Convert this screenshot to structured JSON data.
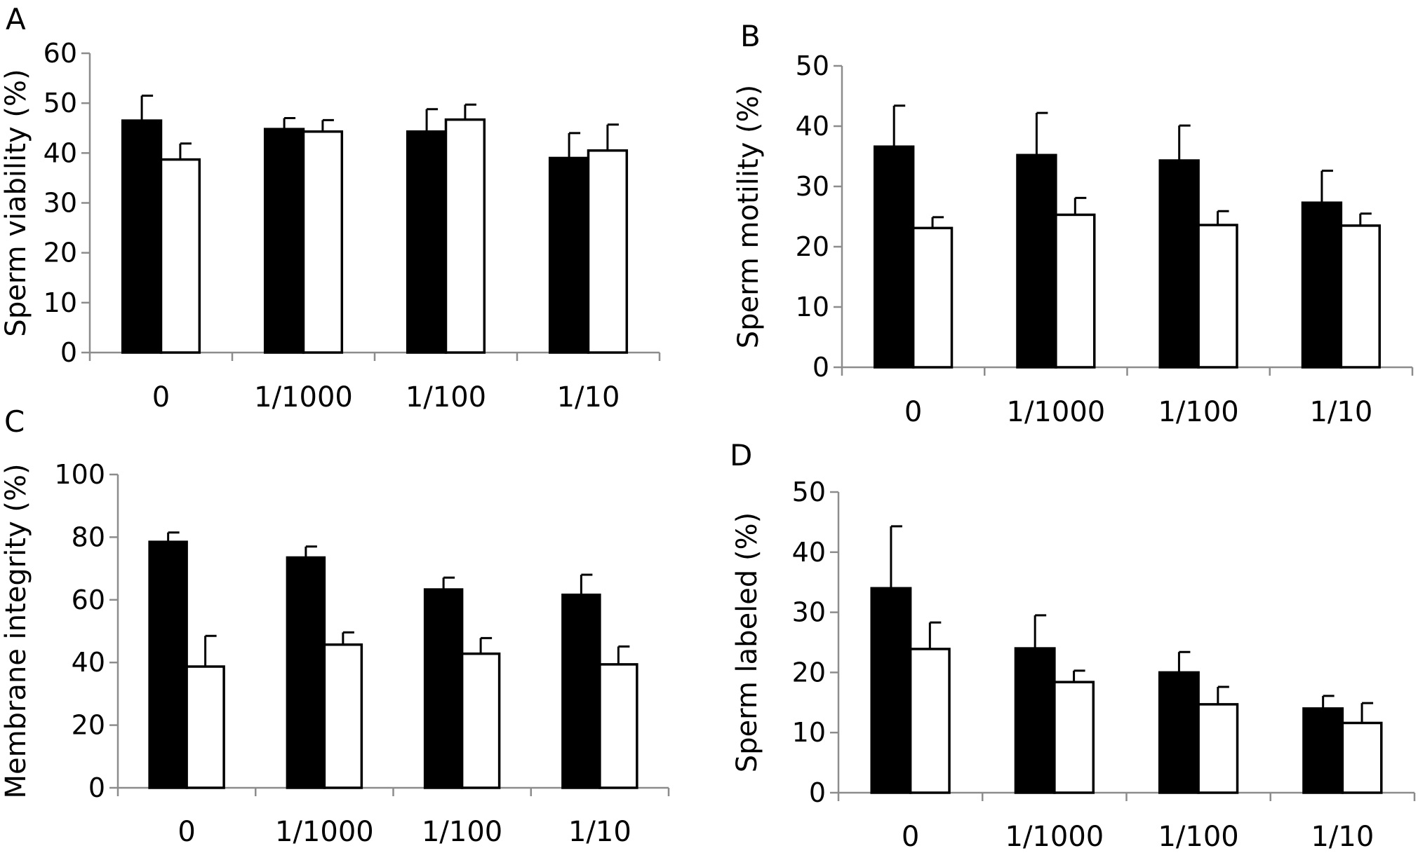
{
  "chart_data": [
    {
      "panel": "A",
      "type": "bar",
      "ylabel": "Sperm viability (%)",
      "xlabel": "",
      "categories": [
        "0",
        "1/1000",
        "1/100",
        "1/10"
      ],
      "ylim": [
        0,
        60
      ],
      "yticks": [
        0,
        10,
        20,
        30,
        40,
        50,
        60
      ],
      "series": [
        {
          "fill": "#000000",
          "values": [
            46.5,
            44.8,
            44.3,
            39.0
          ],
          "error": [
            5.0,
            2.2,
            4.5,
            5.0
          ]
        },
        {
          "fill": "#ffffff",
          "values": [
            38.7,
            44.3,
            46.7,
            40.5
          ],
          "error": [
            3.2,
            2.3,
            3.0,
            5.2
          ]
        }
      ],
      "grid": false,
      "legend": "none"
    },
    {
      "panel": "B",
      "type": "bar",
      "ylabel": "Sperm motility (%)",
      "xlabel": "",
      "categories": [
        "0",
        "1/1000",
        "1/100",
        "1/10"
      ],
      "ylim": [
        0,
        50
      ],
      "yticks": [
        0,
        10,
        20,
        30,
        40,
        50
      ],
      "series": [
        {
          "fill": "#000000",
          "values": [
            36.6,
            35.2,
            34.3,
            27.3
          ],
          "error": [
            6.8,
            7.0,
            5.8,
            5.3
          ]
        },
        {
          "fill": "#ffffff",
          "values": [
            23.1,
            25.3,
            23.6,
            23.5
          ],
          "error": [
            1.8,
            2.8,
            2.3,
            2.0
          ]
        }
      ],
      "grid": false,
      "legend": "none"
    },
    {
      "panel": "C",
      "type": "bar",
      "ylabel": "Membrane  integrity (%)",
      "xlabel": "",
      "categories": [
        "0",
        "1/1000",
        "1/100",
        "1/10"
      ],
      "ylim": [
        0,
        100
      ],
      "yticks": [
        0,
        20,
        40,
        60,
        80,
        100
      ],
      "series": [
        {
          "fill": "#000000",
          "values": [
            78.5,
            73.5,
            63.3,
            61.6
          ],
          "error": [
            3.0,
            3.5,
            3.8,
            6.4
          ]
        },
        {
          "fill": "#ffffff",
          "values": [
            38.7,
            45.7,
            42.8,
            39.4
          ],
          "error": [
            9.8,
            3.9,
            5.0,
            5.7
          ]
        }
      ],
      "grid": false,
      "legend": "none"
    },
    {
      "panel": "D",
      "type": "bar",
      "ylabel": "Sperm labeled (%)",
      "xlabel": "",
      "categories": [
        "0",
        "1/1000",
        "1/100",
        "1/10"
      ],
      "ylim": [
        0,
        50
      ],
      "yticks": [
        0,
        10,
        20,
        30,
        40,
        50
      ],
      "series": [
        {
          "fill": "#000000",
          "values": [
            34.0,
            24.0,
            20.0,
            14.0
          ],
          "error": [
            10.3,
            5.5,
            3.4,
            2.1
          ]
        },
        {
          "fill": "#ffffff",
          "values": [
            23.9,
            18.4,
            14.7,
            11.6
          ],
          "error": [
            4.4,
            1.9,
            2.9,
            3.3
          ]
        }
      ],
      "grid": false,
      "legend": "none"
    }
  ]
}
